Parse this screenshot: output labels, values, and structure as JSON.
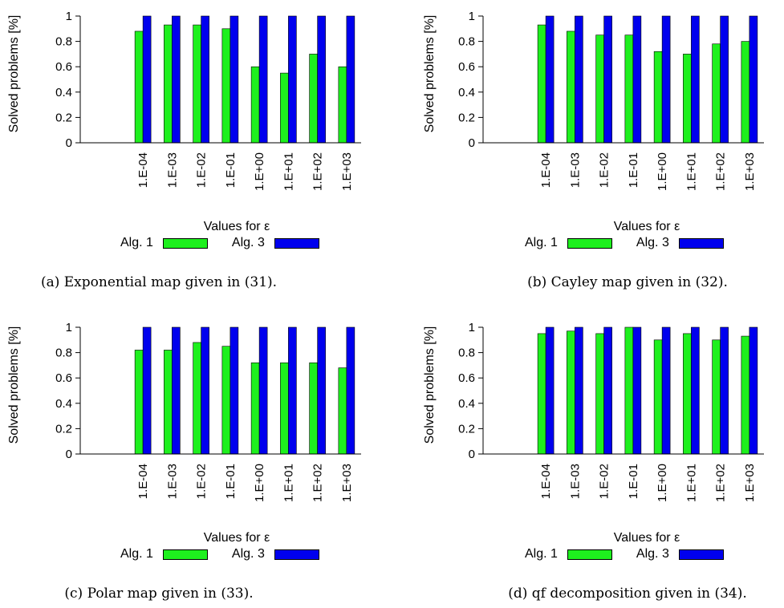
{
  "colors": {
    "alg1": "#1ef01e",
    "alg3": "#0000ee",
    "axis": "#000000",
    "grid": "#c8c8c8"
  },
  "chart_data": [
    {
      "type": "bar",
      "categories": [
        "1.E-04",
        "1.E-03",
        "1.E-02",
        "1.E-01",
        "1.E+00",
        "1.E+01",
        "1.E+02",
        "1.E+03"
      ],
      "series": [
        {
          "name": "Alg. 1",
          "values": [
            0.88,
            0.93,
            0.93,
            0.9,
            0.6,
            0.55,
            0.7,
            0.6
          ]
        },
        {
          "name": "Alg. 3",
          "values": [
            1,
            1,
            1,
            1,
            1,
            1,
            1,
            1
          ]
        }
      ],
      "ylim": [
        0,
        1
      ],
      "yticks": [
        "0",
        "0.2",
        "0.4",
        "0.6",
        "0.8",
        "1"
      ],
      "xlabel": "Values for ε",
      "ylabel": "Solved problems [%]",
      "caption": "(a)  Exponential map given in (31).",
      "grid": false,
      "legend": "bottom"
    },
    {
      "type": "bar",
      "categories": [
        "1.E-04",
        "1.E-03",
        "1.E-02",
        "1.E-01",
        "1.E+00",
        "1.E+01",
        "1.E+02",
        "1.E+03"
      ],
      "series": [
        {
          "name": "Alg. 1",
          "values": [
            0.93,
            0.88,
            0.85,
            0.85,
            0.72,
            0.7,
            0.78,
            0.8
          ]
        },
        {
          "name": "Alg. 3",
          "values": [
            1,
            1,
            1,
            1,
            1,
            1,
            1,
            1
          ]
        }
      ],
      "ylim": [
        0,
        1
      ],
      "yticks": [
        "0",
        "0.2",
        "0.4",
        "0.6",
        "0.8",
        "1"
      ],
      "xlabel": "Values for ε",
      "ylabel": "Solved problems [%]",
      "caption": "(b)  Cayley map given in (32).",
      "grid": false,
      "legend": "bottom"
    },
    {
      "type": "bar",
      "categories": [
        "1.E-04",
        "1.E-03",
        "1.E-02",
        "1.E-01",
        "1.E+00",
        "1.E+01",
        "1.E+02",
        "1.E+03"
      ],
      "series": [
        {
          "name": "Alg. 1",
          "values": [
            0.82,
            0.82,
            0.88,
            0.85,
            0.72,
            0.72,
            0.72,
            0.68
          ]
        },
        {
          "name": "Alg. 3",
          "values": [
            1,
            1,
            1,
            1,
            1,
            1,
            1,
            1
          ]
        }
      ],
      "ylim": [
        0,
        1
      ],
      "yticks": [
        "0",
        "0.2",
        "0.4",
        "0.6",
        "0.8",
        "1"
      ],
      "xlabel": "Values for ε",
      "ylabel": "Solved problems [%]",
      "caption": "(c)  Polar map given in (33).",
      "grid": false,
      "legend": "bottom"
    },
    {
      "type": "bar",
      "categories": [
        "1.E-04",
        "1.E-03",
        "1.E-02",
        "1.E-01",
        "1.E+00",
        "1.E+01",
        "1.E+02",
        "1.E+03"
      ],
      "series": [
        {
          "name": "Alg. 1",
          "values": [
            0.95,
            0.97,
            0.95,
            1.0,
            0.9,
            0.95,
            0.9,
            0.93
          ]
        },
        {
          "name": "Alg. 3",
          "values": [
            1,
            1,
            1,
            1,
            1,
            1,
            1,
            1
          ]
        }
      ],
      "ylim": [
        0,
        1
      ],
      "yticks": [
        "0",
        "0.2",
        "0.4",
        "0.6",
        "0.8",
        "1"
      ],
      "xlabel": "Values for ε",
      "ylabel": "Solved problems [%]",
      "caption": "(d)  qf decomposition given in (34).",
      "grid": false,
      "legend": "bottom"
    }
  ]
}
